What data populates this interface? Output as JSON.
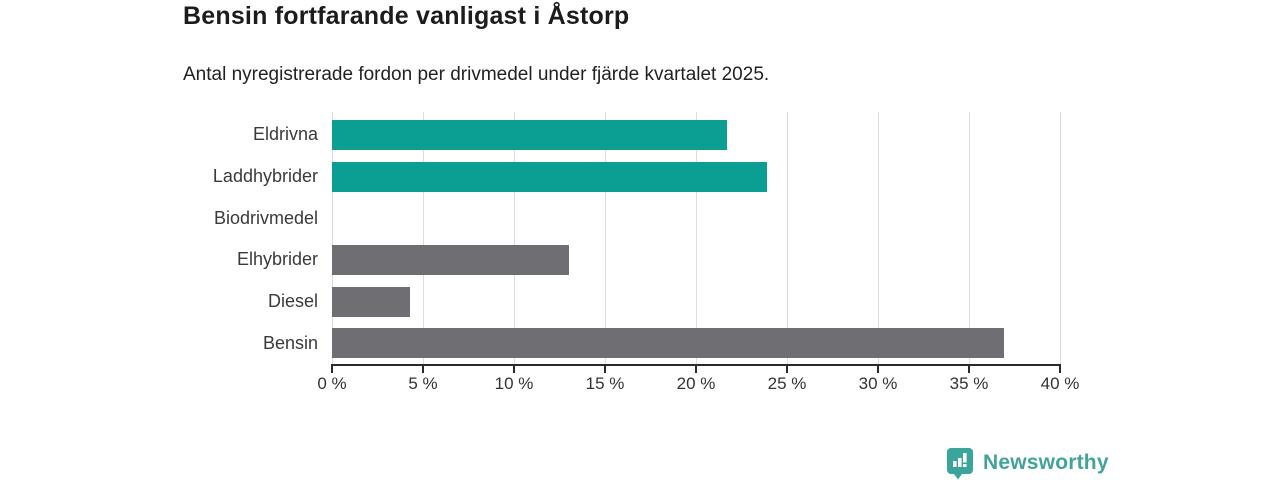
{
  "title": "Bensin fortfarande vanligast i Åstorp",
  "subtitle": "Antal nyregistrerade fordon per drivmedel under fjärde kvartalet 2025.",
  "chart_data": {
    "type": "bar",
    "orientation": "horizontal",
    "title": "Bensin fortfarande vanligast i Åstorp",
    "subtitle": "Antal nyregistrerade fordon per drivmedel under fjärde kvartalet 2025.",
    "categories": [
      "Eldrivna",
      "Laddhybrider",
      "Biodrivmedel",
      "Elhybrider",
      "Diesel",
      "Bensin"
    ],
    "values": [
      21.7,
      23.9,
      0,
      13.0,
      4.3,
      36.9
    ],
    "unit": "%",
    "xlim": [
      0,
      40
    ],
    "x_ticks": [
      "0 %",
      "5 %",
      "10 %",
      "15 %",
      "20 %",
      "25 %",
      "30 %",
      "35 %",
      "40 %"
    ],
    "x_tick_values": [
      0,
      5,
      10,
      15,
      20,
      25,
      30,
      35,
      40
    ],
    "grid": "vertical",
    "legend": "none",
    "bar_colors": [
      "#0b9e93",
      "#0b9e93",
      "#6e6e73",
      "#6e6e73",
      "#6e6e73",
      "#6e6e73"
    ]
  },
  "colors": {
    "accent_teal": "#0b9e93",
    "bar_gray": "#6e6e73",
    "gridline": "#dcdcdc",
    "axis": "#2b2b2b",
    "title_text": "#1c1c1c",
    "label_text": "#3a3a3a",
    "logo_teal": "#43a39a"
  },
  "branding": {
    "logo_text": "Newsworthy",
    "logo_icon": "newsworthy-barchart-bubble-icon"
  }
}
